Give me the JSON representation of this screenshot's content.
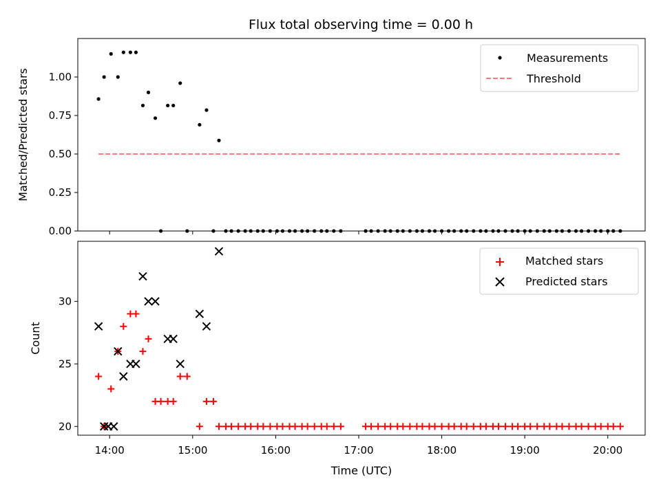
{
  "chart_data": [
    {
      "type": "scatter",
      "title": "Flux total observing time = 0.00 h",
      "xlabel": "",
      "ylabel": "Matched/Predicted stars",
      "xlim": [
        "13:37",
        "20:27"
      ],
      "ylim": [
        0,
        1.25
      ],
      "xticks": [
        "14:00",
        "15:00",
        "16:00",
        "17:00",
        "18:00",
        "19:00",
        "20:00"
      ],
      "yticks": [
        "0.00",
        "0.25",
        "0.50",
        "0.75",
        "1.00"
      ],
      "ytick_values": [
        0,
        0.25,
        0.5,
        0.75,
        1.0
      ],
      "legend_position": "upper right",
      "series": [
        {
          "name": "Measurements",
          "kind": "points",
          "color": "#000000",
          "points": [
            [
              "13:52",
              0.857
            ],
            [
              "13:56",
              1.0
            ],
            [
              "14:01",
              1.15
            ],
            [
              "14:06",
              1.0
            ],
            [
              "14:10",
              1.16
            ],
            [
              "14:15",
              1.16
            ],
            [
              "14:19",
              1.16
            ],
            [
              "14:24",
              0.815
            ],
            [
              "14:28",
              0.9
            ],
            [
              "14:33",
              0.733
            ],
            [
              "14:37",
              0.0
            ],
            [
              "14:42",
              0.815
            ],
            [
              "14:46",
              0.815
            ],
            [
              "14:51",
              0.96
            ],
            [
              "14:56",
              0.0
            ],
            [
              "15:05",
              0.69
            ],
            [
              "15:10",
              0.785
            ],
            [
              "15:15",
              0.0
            ],
            [
              "15:19",
              0.588
            ],
            [
              "15:24",
              0.0
            ],
            [
              "15:28",
              0.0
            ],
            [
              "15:33",
              0.0
            ],
            [
              "15:38",
              0.0
            ],
            [
              "15:42",
              0.0
            ],
            [
              "15:47",
              0.0
            ],
            [
              "15:51",
              0.0
            ],
            [
              "15:56",
              0.0
            ],
            [
              "16:01",
              0.0
            ],
            [
              "16:05",
              0.0
            ],
            [
              "16:10",
              0.0
            ],
            [
              "16:14",
              0.0
            ],
            [
              "16:19",
              0.0
            ],
            [
              "16:23",
              0.0
            ],
            [
              "16:28",
              0.0
            ],
            [
              "16:33",
              0.0
            ],
            [
              "16:37",
              0.0
            ],
            [
              "16:42",
              0.0
            ],
            [
              "16:47",
              0.0
            ],
            [
              "17:05",
              0.0
            ],
            [
              "17:09",
              0.0
            ],
            [
              "17:14",
              0.0
            ],
            [
              "17:19",
              0.0
            ],
            [
              "17:23",
              0.0
            ],
            [
              "17:28",
              0.0
            ],
            [
              "17:32",
              0.0
            ],
            [
              "17:37",
              0.0
            ],
            [
              "17:42",
              0.0
            ],
            [
              "17:46",
              0.0
            ],
            [
              "17:51",
              0.0
            ],
            [
              "17:55",
              0.0
            ],
            [
              "18:00",
              0.0
            ],
            [
              "18:05",
              0.0
            ],
            [
              "18:09",
              0.0
            ],
            [
              "18:14",
              0.0
            ],
            [
              "18:18",
              0.0
            ],
            [
              "18:23",
              0.0
            ],
            [
              "18:28",
              0.0
            ],
            [
              "18:32",
              0.0
            ],
            [
              "18:37",
              0.0
            ],
            [
              "18:41",
              0.0
            ],
            [
              "18:46",
              0.0
            ],
            [
              "18:51",
              0.0
            ],
            [
              "18:55",
              0.0
            ],
            [
              "19:00",
              0.0
            ],
            [
              "19:04",
              0.0
            ],
            [
              "19:09",
              0.0
            ],
            [
              "19:14",
              0.0
            ],
            [
              "19:18",
              0.0
            ],
            [
              "19:23",
              0.0
            ],
            [
              "19:27",
              0.0
            ],
            [
              "19:32",
              0.0
            ],
            [
              "19:37",
              0.0
            ],
            [
              "19:41",
              0.0
            ],
            [
              "19:46",
              0.0
            ],
            [
              "19:51",
              0.0
            ],
            [
              "19:55",
              0.0
            ],
            [
              "20:00",
              0.0
            ],
            [
              "20:04",
              0.0
            ],
            [
              "20:09",
              0.0
            ]
          ]
        },
        {
          "name": "Threshold",
          "kind": "dashed-line",
          "color": "#ff7777",
          "points": [
            [
              "13:52",
              0.5
            ],
            [
              "20:09",
              0.5
            ]
          ]
        }
      ]
    },
    {
      "type": "scatter",
      "title": "",
      "xlabel": "Time (UTC)",
      "ylabel": "Count",
      "xlim": [
        "13:37",
        "20:27"
      ],
      "ylim": [
        19.3,
        34.8
      ],
      "xticks": [
        "14:00",
        "15:00",
        "16:00",
        "17:00",
        "18:00",
        "19:00",
        "20:00"
      ],
      "yticks": [
        "20",
        "25",
        "30"
      ],
      "ytick_values": [
        20,
        25,
        30
      ],
      "legend_position": "upper right",
      "series": [
        {
          "name": "Matched stars",
          "kind": "plus",
          "color": "#ff0000",
          "points": [
            [
              "13:52",
              24
            ],
            [
              "13:56",
              20
            ],
            [
              "14:01",
              23
            ],
            [
              "14:06",
              26
            ],
            [
              "14:10",
              28
            ],
            [
              "14:15",
              29
            ],
            [
              "14:19",
              29
            ],
            [
              "14:24",
              26
            ],
            [
              "14:28",
              27
            ],
            [
              "14:33",
              22
            ],
            [
              "14:37",
              22
            ],
            [
              "14:42",
              22
            ],
            [
              "14:46",
              22
            ],
            [
              "14:51",
              24
            ],
            [
              "14:56",
              24
            ],
            [
              "15:05",
              20
            ],
            [
              "15:10",
              22
            ],
            [
              "15:15",
              22
            ],
            [
              "15:19",
              20
            ],
            [
              "15:24",
              20
            ],
            [
              "15:28",
              20
            ],
            [
              "15:33",
              20
            ],
            [
              "15:38",
              20
            ],
            [
              "15:42",
              20
            ],
            [
              "15:47",
              20
            ],
            [
              "15:51",
              20
            ],
            [
              "15:56",
              20
            ],
            [
              "16:01",
              20
            ],
            [
              "16:05",
              20
            ],
            [
              "16:10",
              20
            ],
            [
              "16:14",
              20
            ],
            [
              "16:19",
              20
            ],
            [
              "16:23",
              20
            ],
            [
              "16:28",
              20
            ],
            [
              "16:33",
              20
            ],
            [
              "16:37",
              20
            ],
            [
              "16:42",
              20
            ],
            [
              "16:47",
              20
            ],
            [
              "17:05",
              20
            ],
            [
              "17:09",
              20
            ],
            [
              "17:14",
              20
            ],
            [
              "17:19",
              20
            ],
            [
              "17:23",
              20
            ],
            [
              "17:28",
              20
            ],
            [
              "17:32",
              20
            ],
            [
              "17:37",
              20
            ],
            [
              "17:42",
              20
            ],
            [
              "17:46",
              20
            ],
            [
              "17:51",
              20
            ],
            [
              "17:55",
              20
            ],
            [
              "18:00",
              20
            ],
            [
              "18:05",
              20
            ],
            [
              "18:09",
              20
            ],
            [
              "18:14",
              20
            ],
            [
              "18:18",
              20
            ],
            [
              "18:23",
              20
            ],
            [
              "18:28",
              20
            ],
            [
              "18:32",
              20
            ],
            [
              "18:37",
              20
            ],
            [
              "18:41",
              20
            ],
            [
              "18:46",
              20
            ],
            [
              "18:51",
              20
            ],
            [
              "18:55",
              20
            ],
            [
              "19:00",
              20
            ],
            [
              "19:04",
              20
            ],
            [
              "19:09",
              20
            ],
            [
              "19:14",
              20
            ],
            [
              "19:18",
              20
            ],
            [
              "19:23",
              20
            ],
            [
              "19:27",
              20
            ],
            [
              "19:32",
              20
            ],
            [
              "19:37",
              20
            ],
            [
              "19:41",
              20
            ],
            [
              "19:46",
              20
            ],
            [
              "19:51",
              20
            ],
            [
              "19:55",
              20
            ],
            [
              "20:00",
              20
            ],
            [
              "20:04",
              20
            ],
            [
              "20:09",
              20
            ]
          ]
        },
        {
          "name": "Predicted stars",
          "kind": "cross",
          "color": "#000000",
          "points": [
            [
              "13:52",
              28
            ],
            [
              "13:56",
              20
            ],
            [
              "13:59",
              20
            ],
            [
              "14:03",
              20
            ],
            [
              "14:06",
              26
            ],
            [
              "14:10",
              24
            ],
            [
              "14:15",
              25
            ],
            [
              "14:19",
              25
            ],
            [
              "14:24",
              32
            ],
            [
              "14:28",
              30
            ],
            [
              "14:33",
              30
            ],
            [
              "14:42",
              27
            ],
            [
              "14:46",
              27
            ],
            [
              "14:51",
              25
            ],
            [
              "15:05",
              29
            ],
            [
              "15:10",
              28
            ],
            [
              "15:19",
              34
            ]
          ]
        }
      ]
    }
  ]
}
